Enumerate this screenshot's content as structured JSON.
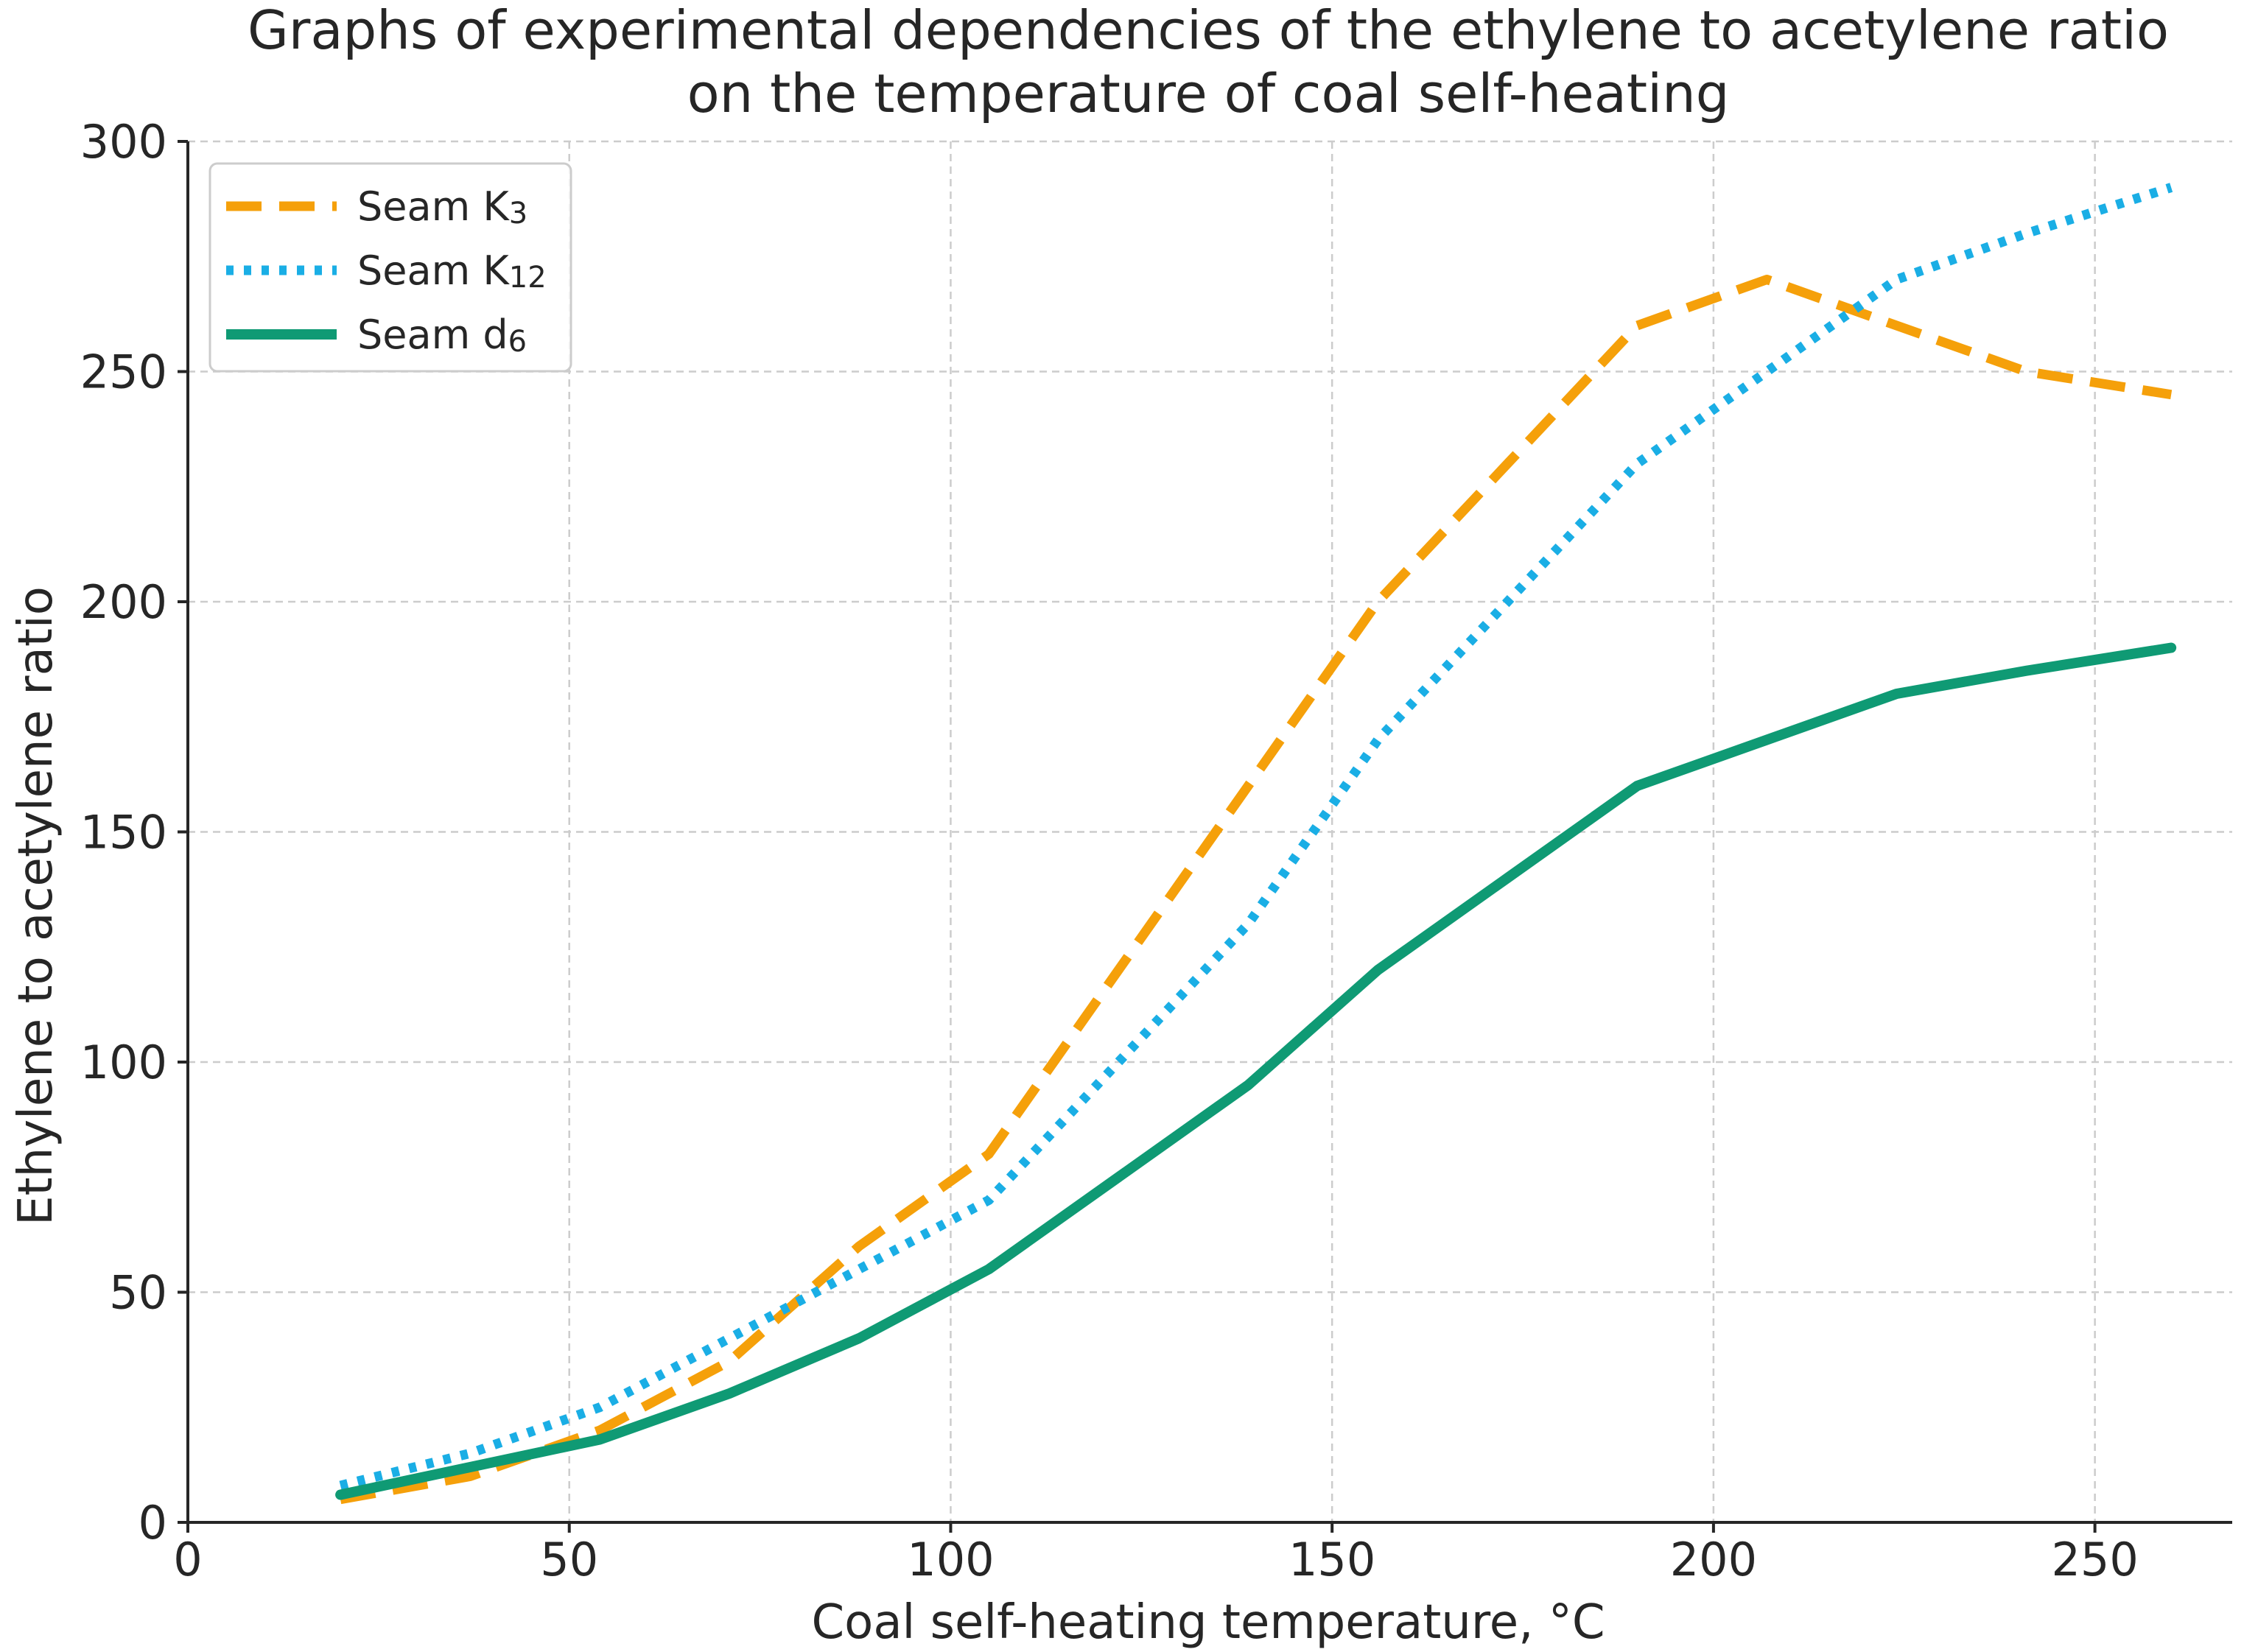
{
  "chart_data": {
    "type": "line",
    "title_line1": "Graphs of experimental dependencies of the ethylene to acetylene ratio",
    "title_line2": "on the temperature of coal self-heating",
    "xlabel": "Coal self-heating temperature, °C",
    "ylabel": "Ethylene to acetylene ratio",
    "xlim": [
      0,
      268
    ],
    "ylim": [
      0,
      300
    ],
    "xticks": [
      0,
      50,
      100,
      150,
      200,
      250
    ],
    "yticks": [
      0,
      50,
      100,
      150,
      200,
      250,
      300
    ],
    "grid": true,
    "legend_position": "top-left",
    "x": [
      20,
      37,
      54,
      71,
      88,
      105,
      122,
      139,
      156,
      173,
      190,
      207,
      224,
      241,
      260
    ],
    "series": [
      {
        "name": "Seam K₃",
        "name_base": "Seam K",
        "name_sub": "3",
        "color": "#f5a00a",
        "style": "dashed",
        "values": [
          5,
          10,
          20,
          35,
          60,
          80,
          120,
          160,
          200,
          230,
          260,
          270,
          260,
          250,
          245
        ]
      },
      {
        "name": "Seam K₁₂",
        "name_base": "Seam K",
        "name_sub": "12",
        "color": "#1aaee5",
        "style": "dotted",
        "values": [
          8,
          15,
          25,
          40,
          55,
          70,
          100,
          130,
          170,
          200,
          230,
          250,
          270,
          280,
          290
        ]
      },
      {
        "name": "Seam d₆",
        "name_base": "Seam d",
        "name_sub": "6",
        "color": "#0f9a74",
        "style": "solid",
        "values": [
          6,
          12,
          18,
          28,
          40,
          55,
          75,
          95,
          120,
          140,
          160,
          170,
          180,
          185,
          190
        ]
      }
    ]
  }
}
